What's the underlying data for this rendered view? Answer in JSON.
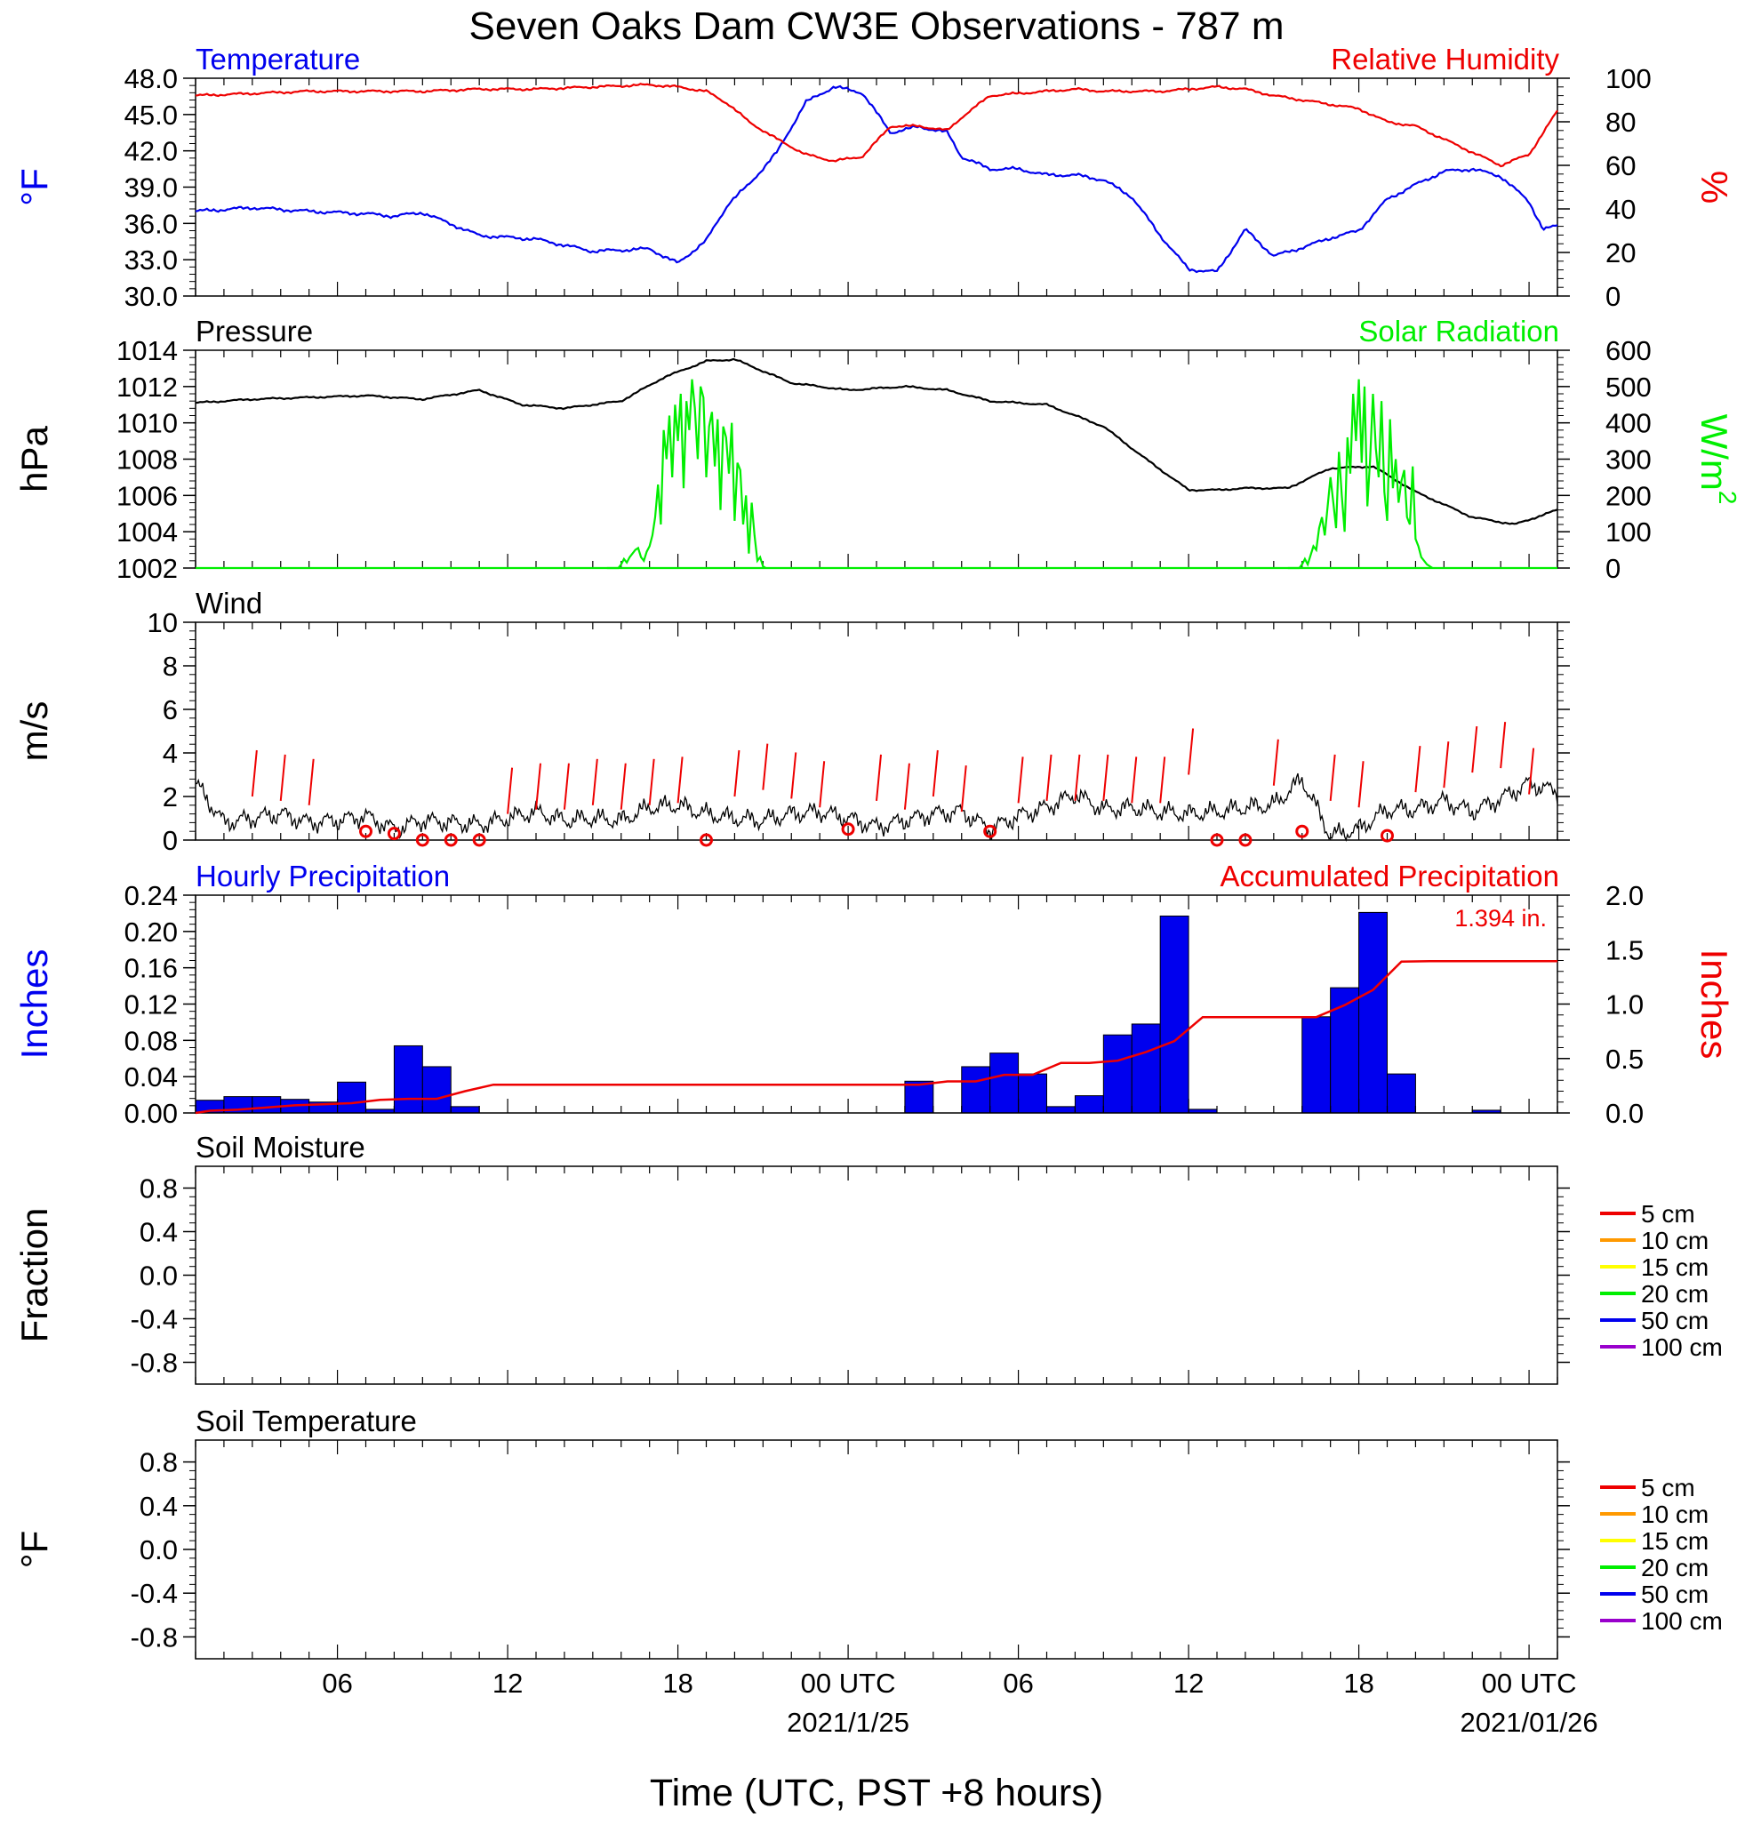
{
  "figure": {
    "title": "Seven Oaks Dam CW3E Observations - 787 m",
    "xlabel": "Time (UTC, PST +8 hours)"
  },
  "colors": {
    "temperature": "#0000ee",
    "humidity": "#ee0000",
    "pressure": "#000000",
    "solar": "#00ee00",
    "wind": "#000000",
    "wind_barb": "#ee0000",
    "hourly_precip": "#0000ee",
    "accum_precip": "#ee0000"
  },
  "chart_data": [
    {
      "type": "line",
      "panel": "temperature-humidity",
      "left_title": "Temperature",
      "right_title": "Relative Humidity",
      "ylabel_left": "°F",
      "ylabel_right": "%",
      "ylim_left": [
        30,
        48
      ],
      "ylim_right": [
        0,
        100
      ],
      "yticks_left": [
        "30.0",
        "33.0",
        "36.0",
        "39.0",
        "42.0",
        "45.0",
        "48.0"
      ],
      "yticks_right": [
        "0",
        "20",
        "40",
        "60",
        "80",
        "100"
      ],
      "x_hours": [
        0,
        2,
        4,
        6,
        7,
        8,
        10,
        12,
        14,
        16,
        17,
        18,
        18.8,
        19.5,
        20.5,
        21.5,
        22.5,
        23.5,
        24.5,
        25.5,
        26.5,
        27,
        28,
        29,
        30,
        31,
        32,
        33,
        34,
        35,
        36,
        37,
        38,
        39,
        40,
        41,
        42,
        43,
        44,
        45,
        46,
        47,
        47.5,
        48
      ],
      "series": [
        {
          "name": "Temperature",
          "color_key": "temperature",
          "axis": "left",
          "values": [
            37.0,
            37.3,
            37.0,
            36.8,
            36.6,
            36.9,
            35.0,
            34.7,
            33.7,
            33.9,
            32.7,
            34.6,
            37.7,
            39.2,
            41.9,
            46.0,
            47.3,
            46.8,
            43.5,
            44.0,
            43.5,
            41.5,
            40.5,
            40.5,
            40.0,
            40.0,
            39.6,
            38.2,
            35.0,
            32.2,
            32.0,
            35.5,
            33.3,
            34.0,
            34.8,
            35.4,
            38.0,
            39.2,
            40.3,
            40.5,
            39.9,
            37.8,
            35.5,
            35.8
          ]
        },
        {
          "name": "Relative Humidity",
          "color_key": "humidity",
          "axis": "right",
          "values": [
            92,
            93,
            94,
            94,
            94,
            94,
            95,
            95,
            96,
            97,
            96,
            94,
            88,
            80,
            72,
            65,
            62,
            64,
            78,
            78,
            76,
            82,
            92,
            93,
            94,
            95,
            94,
            94,
            94,
            95,
            96,
            95,
            92,
            90,
            88,
            86,
            80,
            78,
            72,
            66,
            60,
            65,
            75,
            85
          ]
        }
      ]
    },
    {
      "type": "line",
      "panel": "pressure-solar",
      "left_title": "Pressure",
      "right_title": "Solar Radiation",
      "ylabel_left": "hPa",
      "ylabel_right": "W/m",
      "ylabel_right_sup": "2",
      "ylim_left": [
        1002,
        1014
      ],
      "ylim_right": [
        0,
        600
      ],
      "yticks_left": [
        "1002",
        "1004",
        "1006",
        "1008",
        "1010",
        "1012",
        "1014"
      ],
      "yticks_right": [
        "0",
        "100",
        "200",
        "300",
        "400",
        "500",
        "600"
      ],
      "x_hours": [
        0,
        2,
        4,
        6,
        8,
        10,
        11.5,
        13,
        15,
        16.5,
        18,
        19,
        21,
        23,
        25,
        26.5,
        28,
        30,
        32,
        33.5,
        35,
        36,
        37,
        38.5,
        40,
        41.5,
        43,
        45,
        46.5,
        48
      ],
      "series": [
        {
          "name": "Pressure",
          "color_key": "pressure",
          "axis": "left",
          "values": [
            1011.1,
            1011.3,
            1011.4,
            1011.5,
            1011.3,
            1011.8,
            1011.0,
            1010.8,
            1011.2,
            1012.5,
            1013.4,
            1013.5,
            1012.2,
            1011.8,
            1012.0,
            1011.8,
            1011.2,
            1011.0,
            1009.8,
            1008.0,
            1006.3,
            1006.3,
            1006.4,
            1006.4,
            1007.5,
            1007.6,
            1006.2,
            1004.8,
            1004.4,
            1005.2
          ]
        },
        {
          "name": "Solar Radiation",
          "color_key": "solar",
          "axis": "right",
          "values": [
            0,
            0,
            0,
            0,
            0,
            0,
            0,
            0,
            0,
            0,
            0,
            0,
            0,
            0,
            0,
            0,
            0,
            0,
            0,
            0,
            0,
            0,
            0,
            0,
            0,
            0,
            0,
            0,
            0,
            0
          ]
        }
      ],
      "solar_bursts": [
        {
          "start_hour": 14.5,
          "values": [
            0,
            0,
            0,
            0,
            0,
            10,
            25,
            15,
            30,
            40,
            50,
            55,
            30,
            20,
            45,
            60,
            90,
            140,
            230,
            120,
            380,
            300,
            420,
            250,
            450,
            350,
            480,
            220,
            460,
            380,
            520,
            440,
            300,
            500,
            470,
            250,
            390,
            430,
            280,
            410,
            160,
            390,
            360,
            260,
            400,
            130,
            290,
            270,
            120,
            200,
            40,
            180,
            90,
            20,
            30,
            5,
            0
          ]
        },
        {
          "start_hour": 38.5,
          "values": [
            0,
            0,
            0,
            0,
            0,
            10,
            25,
            10,
            35,
            60,
            50,
            110,
            140,
            90,
            170,
            250,
            180,
            110,
            320,
            200,
            100,
            360,
            260,
            480,
            350,
            520,
            290,
            500,
            170,
            300,
            480,
            330,
            250,
            460,
            210,
            130,
            410,
            220,
            300,
            180,
            240,
            270,
            140,
            120,
            280,
            80,
            60,
            30,
            20,
            10,
            5,
            0
          ]
        }
      ]
    },
    {
      "type": "line",
      "panel": "wind",
      "left_title": "Wind",
      "ylabel_left": "m/s",
      "ylim_left": [
        0,
        10
      ],
      "yticks_left": [
        "0",
        "2",
        "4",
        "6",
        "8",
        "10"
      ],
      "x_hours": [
        0,
        1,
        2,
        3,
        4,
        5,
        6,
        7,
        8,
        9,
        10,
        11,
        12,
        13,
        14,
        15,
        16,
        17,
        18,
        19,
        20,
        21,
        22,
        23,
        24,
        25,
        26,
        27,
        28,
        29,
        30,
        31,
        32,
        33,
        34,
        35,
        36,
        37,
        38,
        39,
        40,
        41,
        42,
        43,
        44,
        45,
        46,
        47,
        48
      ],
      "series": [
        {
          "name": "Wind",
          "color_key": "wind",
          "axis": "left",
          "values": [
            2.6,
            0.8,
            1.0,
            1.2,
            0.8,
            0.9,
            1.1,
            0.5,
            0.9,
            0.8,
            0.7,
            1.0,
            1.3,
            0.9,
            1.0,
            0.9,
            1.5,
            1.6,
            1.2,
            1.0,
            0.9,
            1.2,
            1.3,
            1.0,
            0.6,
            0.9,
            1.2,
            1.3,
            0.5,
            1.1,
            1.5,
            2.1,
            1.4,
            1.5,
            1.3,
            1.2,
            1.3,
            1.5,
            1.6,
            2.8,
            0.2,
            0.5,
            1.4,
            1.4,
            1.8,
            1.3,
            1.9,
            2.6,
            2.2
          ]
        }
      ],
      "barbs": [
        {
          "hour": 2,
          "speed": 2.0
        },
        {
          "hour": 3,
          "speed": 1.8
        },
        {
          "hour": 4,
          "speed": 1.6
        },
        {
          "hour": 6,
          "speed": 0.4
        },
        {
          "hour": 7,
          "speed": 0.3
        },
        {
          "hour": 8,
          "speed": 0.0
        },
        {
          "hour": 9,
          "speed": 0.0
        },
        {
          "hour": 10,
          "speed": 0.0
        },
        {
          "hour": 11,
          "speed": 1.2
        },
        {
          "hour": 12,
          "speed": 1.4
        },
        {
          "hour": 13,
          "speed": 1.4
        },
        {
          "hour": 14,
          "speed": 1.6
        },
        {
          "hour": 15,
          "speed": 1.4
        },
        {
          "hour": 16,
          "speed": 1.6
        },
        {
          "hour": 17,
          "speed": 1.7
        },
        {
          "hour": 18,
          "speed": 0.0
        },
        {
          "hour": 19,
          "speed": 2.0
        },
        {
          "hour": 20,
          "speed": 2.3
        },
        {
          "hour": 21,
          "speed": 1.9
        },
        {
          "hour": 22,
          "speed": 1.5
        },
        {
          "hour": 23,
          "speed": 0.5
        },
        {
          "hour": 24,
          "speed": 1.8
        },
        {
          "hour": 25,
          "speed": 1.4
        },
        {
          "hour": 26,
          "speed": 2.0
        },
        {
          "hour": 27,
          "speed": 1.3
        },
        {
          "hour": 28,
          "speed": 0.4
        },
        {
          "hour": 29,
          "speed": 1.7
        },
        {
          "hour": 30,
          "speed": 1.8
        },
        {
          "hour": 31,
          "speed": 1.8
        },
        {
          "hour": 32,
          "speed": 1.8
        },
        {
          "hour": 33,
          "speed": 1.7
        },
        {
          "hour": 34,
          "speed": 1.7
        },
        {
          "hour": 35,
          "speed": 3.0
        },
        {
          "hour": 36,
          "speed": 0.0
        },
        {
          "hour": 37,
          "speed": 0.0
        },
        {
          "hour": 38,
          "speed": 2.5
        },
        {
          "hour": 39,
          "speed": 0.4
        },
        {
          "hour": 40,
          "speed": 1.8
        },
        {
          "hour": 41,
          "speed": 1.5
        },
        {
          "hour": 42,
          "speed": 0.2
        },
        {
          "hour": 43,
          "speed": 2.2
        },
        {
          "hour": 44,
          "speed": 2.4
        },
        {
          "hour": 45,
          "speed": 3.1
        },
        {
          "hour": 46,
          "speed": 3.3
        },
        {
          "hour": 47,
          "speed": 2.1
        }
      ]
    },
    {
      "type": "bar",
      "panel": "precipitation",
      "left_title": "Hourly Precipitation",
      "right_title": "Accumulated Precipitation",
      "annotation": "1.394 in.",
      "ylabel_left": "Inches",
      "ylabel_right": "Inches",
      "ylim_left": [
        0,
        0.24
      ],
      "ylim_right": [
        0,
        2.0
      ],
      "yticks_left": [
        "0.00",
        "0.04",
        "0.08",
        "0.12",
        "0.16",
        "0.20",
        "0.24"
      ],
      "yticks_right": [
        "0.0",
        "0.5",
        "1.0",
        "1.5",
        "2.0"
      ],
      "hourly": [
        0.014,
        0.018,
        0.018,
        0.015,
        0.012,
        0.034,
        0.004,
        0.074,
        0.051,
        0.007,
        0,
        0,
        0,
        0,
        0,
        0,
        0,
        0,
        0,
        0,
        0,
        0,
        0,
        0,
        0,
        0.035,
        0,
        0.051,
        0.066,
        0.043,
        0.007,
        0.019,
        0.086,
        0.098,
        0.217,
        0.004,
        0,
        0,
        0,
        0.106,
        0.138,
        0.221,
        0.043,
        0,
        0,
        0.003,
        0,
        0
      ],
      "accumulated": [
        0.02,
        0.03,
        0.05,
        0.07,
        0.08,
        0.09,
        0.12,
        0.13,
        0.13,
        0.2,
        0.26,
        0.26,
        0.26,
        0.26,
        0.26,
        0.26,
        0.26,
        0.26,
        0.26,
        0.26,
        0.26,
        0.26,
        0.26,
        0.26,
        0.26,
        0.26,
        0.29,
        0.29,
        0.35,
        0.35,
        0.46,
        0.46,
        0.48,
        0.56,
        0.66,
        0.88,
        0.88,
        0.88,
        0.88,
        0.88,
        0.99,
        1.13,
        1.39,
        1.394,
        1.394,
        1.394,
        1.394,
        1.394
      ]
    },
    {
      "type": "line",
      "panel": "soil-moisture",
      "left_title": "Soil Moisture",
      "ylabel_left": "Fraction",
      "ylim_left": [
        -1,
        1
      ],
      "yticks_left": [
        "-0.8",
        "-0.4",
        "0.0",
        "0.4",
        "0.8"
      ],
      "legend": [
        {
          "name": "5 cm",
          "color": "#ee0000"
        },
        {
          "name": "10 cm",
          "color": "#ff9900"
        },
        {
          "name": "15 cm",
          "color": "#ffff00"
        },
        {
          "name": "20 cm",
          "color": "#00ee00"
        },
        {
          "name": "50 cm",
          "color": "#0000ee"
        },
        {
          "name": "100 cm",
          "color": "#9900cc"
        }
      ]
    },
    {
      "type": "line",
      "panel": "soil-temperature",
      "left_title": "Soil Temperature",
      "ylabel_left": "°F",
      "ylim_left": [
        -1,
        1
      ],
      "yticks_left": [
        "-0.8",
        "-0.4",
        "0.0",
        "0.4",
        "0.8"
      ],
      "legend": [
        {
          "name": "5 cm",
          "color": "#ee0000"
        },
        {
          "name": "10 cm",
          "color": "#ff9900"
        },
        {
          "name": "15 cm",
          "color": "#ffff00"
        },
        {
          "name": "20 cm",
          "color": "#00ee00"
        },
        {
          "name": "50 cm",
          "color": "#0000ee"
        },
        {
          "name": "100 cm",
          "color": "#9900cc"
        }
      ]
    }
  ],
  "x_axis": {
    "xlim_hours": [
      0,
      48
    ],
    "ticks": [
      {
        "hour": 5,
        "label": "06",
        "date": ""
      },
      {
        "hour": 11,
        "label": "12",
        "date": ""
      },
      {
        "hour": 17,
        "label": "18",
        "date": ""
      },
      {
        "hour": 23,
        "label": "00 UTC",
        "date": "2021/1/25"
      },
      {
        "hour": 29,
        "label": "06",
        "date": ""
      },
      {
        "hour": 35,
        "label": "12",
        "date": ""
      },
      {
        "hour": 41,
        "label": "18",
        "date": ""
      },
      {
        "hour": 47,
        "label": "00 UTC",
        "date": "2021/01/26"
      }
    ]
  }
}
